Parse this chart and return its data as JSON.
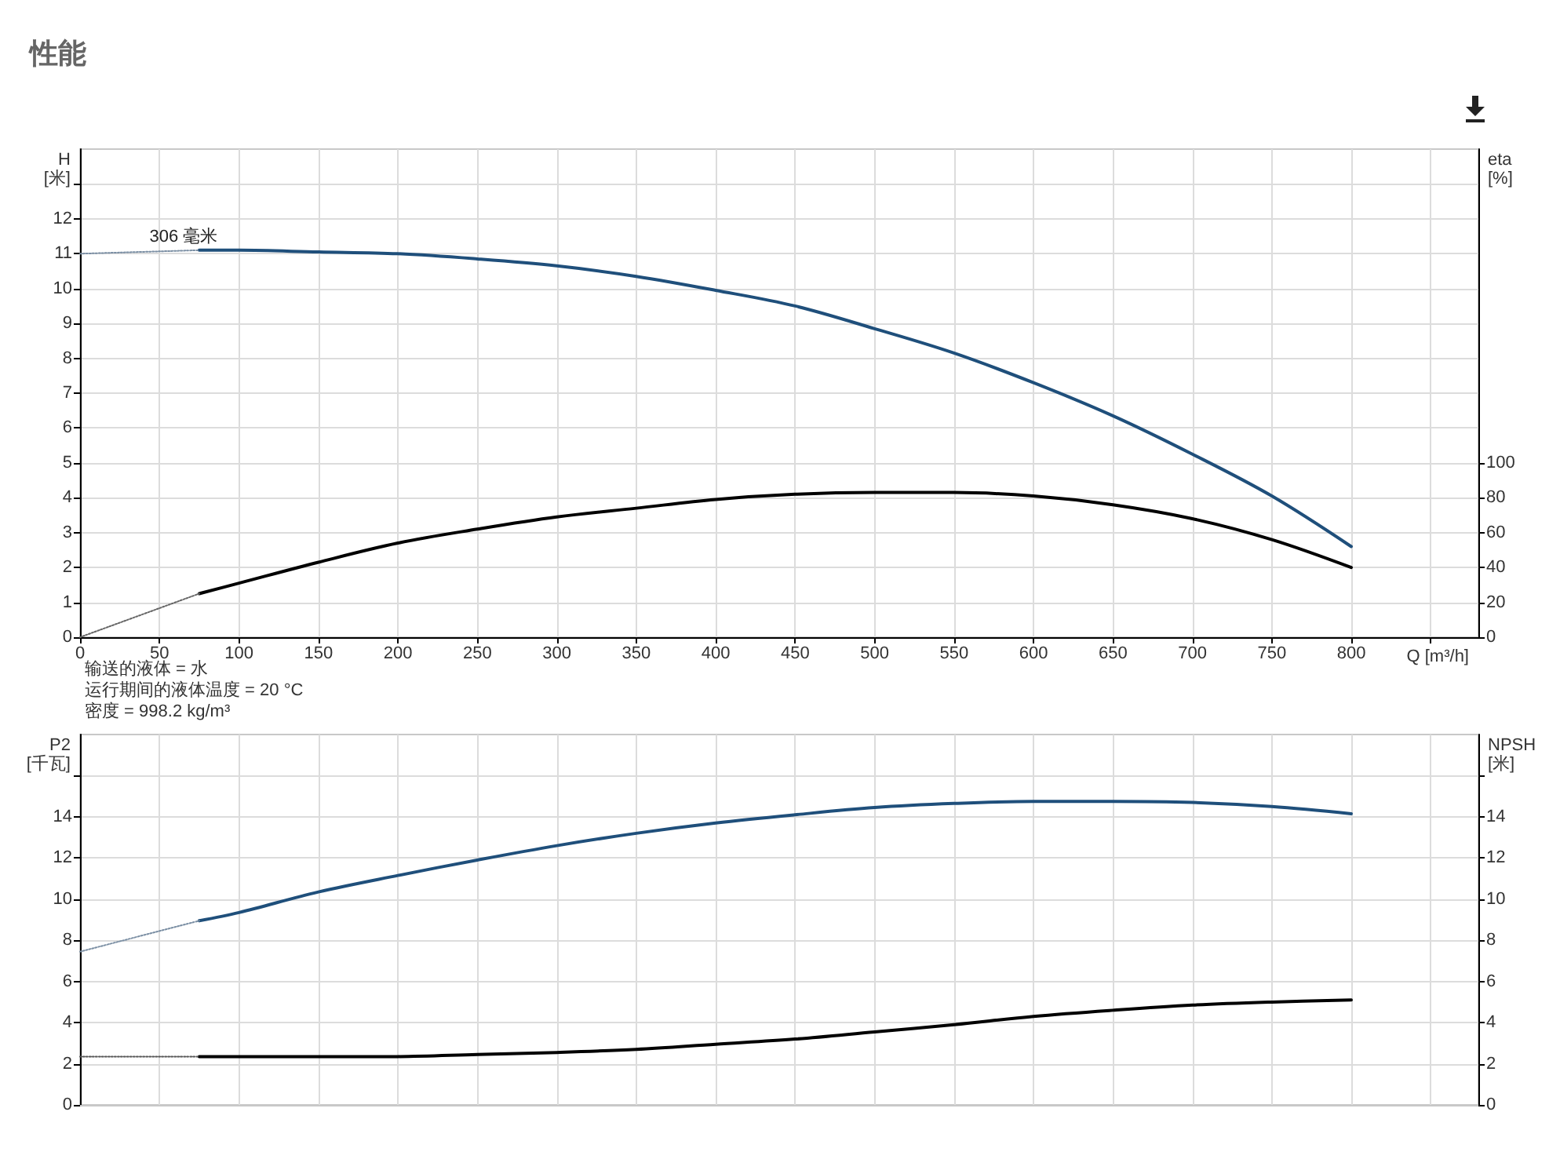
{
  "chart_data": [
    {
      "type": "line",
      "title": "性能",
      "xlabel": "Q [m³/h]",
      "ylabel": "H\n[米]",
      "y2label": "eta\n[%]",
      "annotations": [
        "输送的液体 = 水",
        "运行期间的液体温度 = 20 °C",
        "密度 = 998.2 kg/m³"
      ],
      "xlim": [
        0,
        880
      ],
      "xticks": [
        0,
        50,
        100,
        150,
        200,
        250,
        300,
        350,
        400,
        450,
        500,
        550,
        600,
        650,
        700,
        750,
        800,
        {
          "value": 850,
          "label": null
        }
      ],
      "ylim": [
        0,
        14
      ],
      "yticks": [
        0,
        1,
        2,
        3,
        4,
        5,
        6,
        7,
        8,
        9,
        10,
        11,
        12,
        {
          "value": 13,
          "label": null
        }
      ],
      "y2lim": [
        0,
        280
      ],
      "y2ticks": [
        0,
        20,
        40,
        60,
        80,
        100
      ],
      "grid": true,
      "legend": false,
      "marker": "none",
      "series": [
        {
          "name": "306 毫米",
          "color": "#1f4f7b",
          "x": [
            75,
            100,
            150,
            200,
            250,
            300,
            350,
            400,
            450,
            500,
            550,
            600,
            650,
            700,
            750,
            800
          ],
          "values": [
            11.1,
            11.1,
            11.05,
            11.0,
            10.85,
            10.65,
            10.35,
            9.95,
            9.5,
            8.85,
            8.15,
            7.3,
            6.35,
            5.25,
            4.05,
            2.6
          ]
        },
        {
          "color": "#7a8ea3",
          "line_style": "dotted",
          "x": [
            0,
            75
          ],
          "values": [
            11.0,
            11.1
          ]
        },
        {
          "color": "#000000",
          "axis": "y2",
          "x": [
            75,
            100,
            150,
            200,
            250,
            300,
            350,
            400,
            450,
            500,
            550,
            600,
            650,
            700,
            750,
            800
          ],
          "values": [
            25,
            31,
            43,
            54,
            62,
            69,
            74,
            79,
            82,
            83,
            83,
            81,
            76,
            68,
            56,
            40
          ]
        },
        {
          "color": "#666666",
          "axis": "y2",
          "line_style": "dotted",
          "x": [
            0,
            75
          ],
          "values": [
            0,
            25
          ]
        }
      ]
    },
    {
      "type": "line",
      "ylabel": "P2\n[千瓦]",
      "y2label": "NPSH\n[米]",
      "xlim": [
        0,
        880
      ],
      "xticks": [
        0,
        50,
        100,
        150,
        200,
        250,
        300,
        350,
        400,
        450,
        500,
        550,
        600,
        650,
        700,
        750,
        800,
        850
      ],
      "tick_labels": "y",
      "ylim": [
        0,
        18
      ],
      "yticks": [
        0,
        2,
        4,
        6,
        8,
        10,
        12,
        14,
        {
          "value": 16,
          "label": null
        }
      ],
      "y2lim": [
        0,
        18
      ],
      "y2ticks": [
        0,
        2,
        4,
        6,
        8,
        10,
        12,
        14,
        {
          "value": 16,
          "label": null
        }
      ],
      "grid": true,
      "legend": false,
      "marker": "none",
      "series": [
        {
          "color": "#1f4f7b",
          "x": [
            75,
            100,
            150,
            200,
            250,
            300,
            350,
            400,
            450,
            500,
            550,
            600,
            650,
            700,
            750,
            800
          ],
          "values": [
            8.95,
            9.35,
            10.35,
            11.15,
            11.9,
            12.6,
            13.2,
            13.7,
            14.1,
            14.45,
            14.65,
            14.75,
            14.75,
            14.7,
            14.5,
            14.15
          ]
        },
        {
          "color": "#7a8ea3",
          "line_style": "dotted",
          "x": [
            0,
            75
          ],
          "values": [
            7.45,
            8.95
          ]
        },
        {
          "color": "#000000",
          "axis": "y2",
          "x": [
            75,
            100,
            150,
            200,
            250,
            300,
            350,
            400,
            450,
            500,
            550,
            600,
            650,
            700,
            750,
            800
          ],
          "values": [
            2.35,
            2.35,
            2.35,
            2.35,
            2.45,
            2.55,
            2.7,
            2.95,
            3.2,
            3.55,
            3.9,
            4.3,
            4.6,
            4.85,
            5.0,
            5.1
          ]
        },
        {
          "color": "#555555",
          "axis": "y2",
          "line_style": "dotted",
          "x": [
            0,
            75
          ],
          "values": [
            2.35,
            2.35
          ]
        }
      ]
    }
  ]
}
